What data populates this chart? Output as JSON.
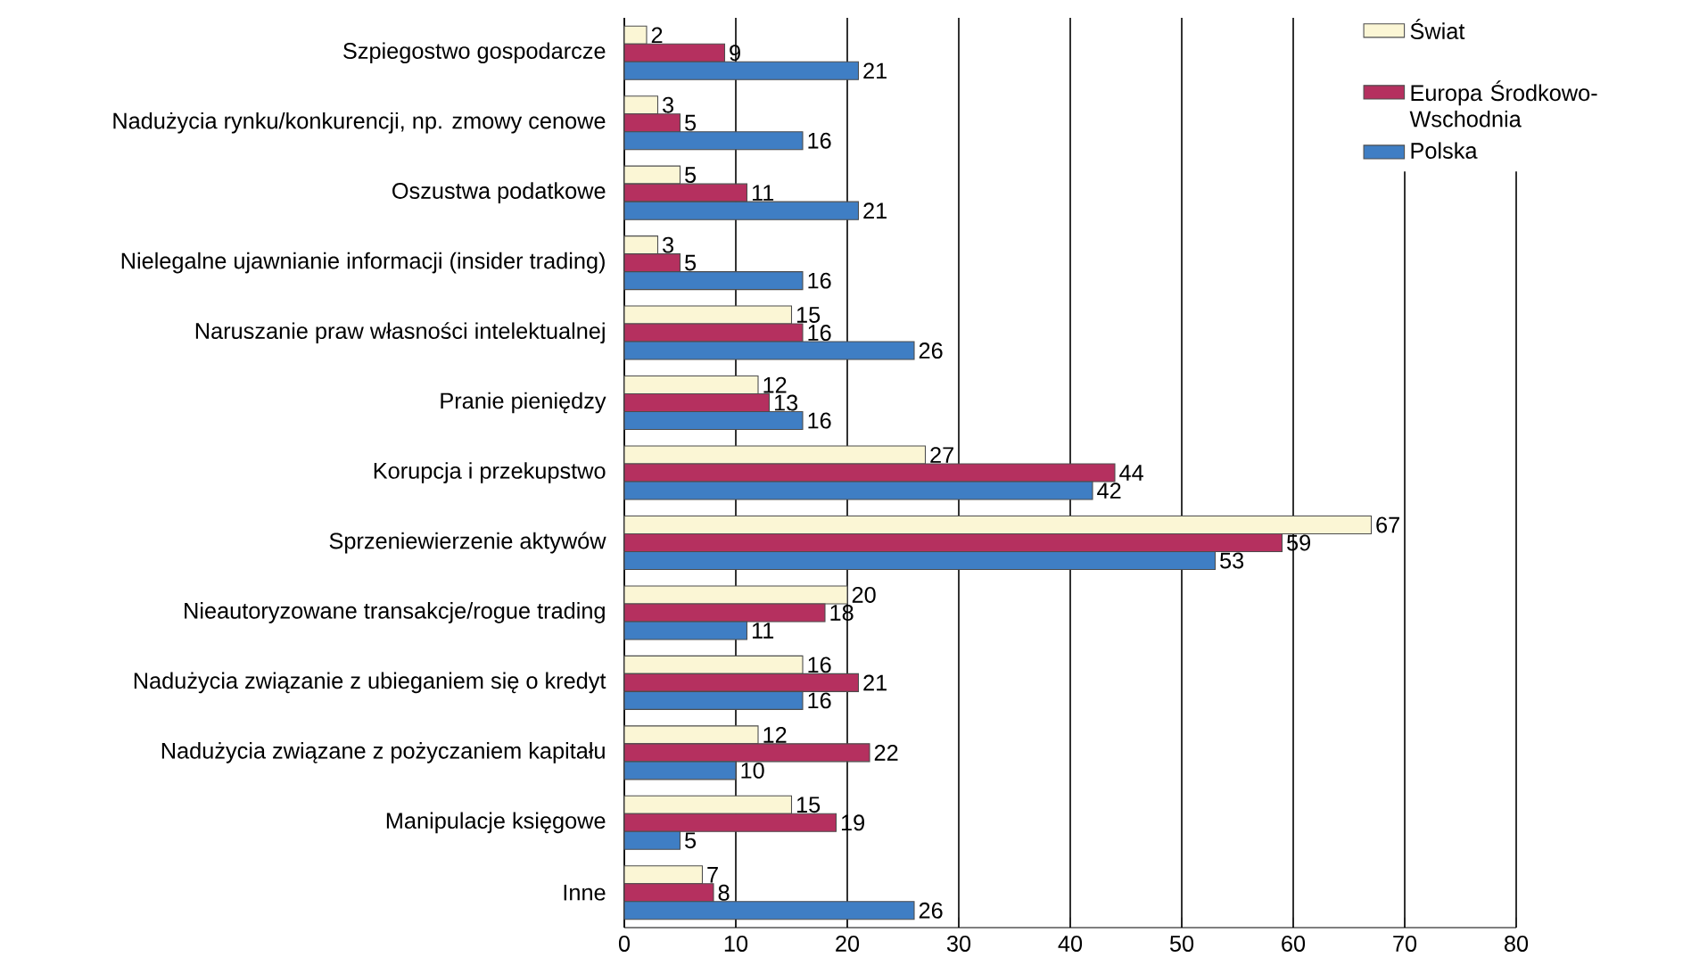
{
  "chart_data": {
    "type": "bar",
    "orientation": "horizontal",
    "categories": [
      "Szpiegostwo gospodarcze",
      "Nadużycia rynku/konkurencji, np. zmowy cenowe",
      "Oszustwa podatkowe",
      "Nielegalne ujawnianie informacji (insider trading)",
      "Naruszanie praw własności intelektualnej",
      "Pranie pieniędzy",
      "Korupcja i przekupstwo",
      "Sprzeniewierzenie aktywów",
      "Nieautoryzowane transakcje/rogue trading",
      "Nadużycia związanie z ubieganiem się o kredyt",
      "Nadużycia związane z pożyczaniem kapitału",
      "Manipulacje księgowe",
      "Inne"
    ],
    "series": [
      {
        "name": "Świat",
        "color": "#fbf6d5",
        "values": [
          2,
          3,
          5,
          3,
          15,
          12,
          27,
          67,
          20,
          16,
          12,
          15,
          7
        ]
      },
      {
        "name": "Europa Środkowo-Wschodnia",
        "color": "#b5305f",
        "values": [
          9,
          5,
          11,
          5,
          16,
          13,
          44,
          59,
          18,
          21,
          22,
          19,
          8
        ]
      },
      {
        "name": "Polska",
        "color": "#3f7ec4",
        "values": [
          21,
          16,
          21,
          16,
          26,
          16,
          42,
          53,
          11,
          16,
          10,
          5,
          26
        ]
      }
    ],
    "xlim": [
      0,
      80
    ],
    "xticks": [
      0,
      10,
      20,
      30,
      40,
      50,
      60,
      70,
      80
    ],
    "grid": "x",
    "legend": "top right",
    "data_labels": true
  }
}
